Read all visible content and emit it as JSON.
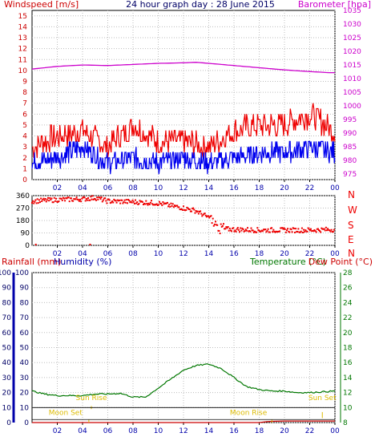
{
  "title": "24 hour graph day : 28 June 2015",
  "colors": {
    "wind_text": "#cc0000",
    "baro": "#cc00cc",
    "wind_avg": "#0000ee",
    "wind_gust": "#ee0000",
    "direction": "#ee0000",
    "temperature": "#007700",
    "humidity": "#0000aa",
    "rain": "#cc0000",
    "dewpoint": "#cc0000",
    "sun": "#ddbb00",
    "moon": "#ddbb00"
  },
  "labels": {
    "windspeed": "Windspeed [m/s]",
    "barometer": "Barometer [hpa]",
    "rainfall": "Rainfall (mm)",
    "humidity": "Humidity (%)",
    "temperature": "Temperature (°C)",
    "dewpoint": "Dew Point (°C)",
    "sun_rise": "Sun Rise",
    "sun_set": "Sun Set",
    "moon_set": "Moon Set",
    "moon_rise": "Moon Rise"
  },
  "chart_data": [
    {
      "type": "line",
      "panel": "wind-barometer",
      "x_ticks": [
        "02",
        "04",
        "06",
        "08",
        "10",
        "12",
        "14",
        "16",
        "18",
        "20",
        "22",
        "00"
      ],
      "left_axis": {
        "label": "Windspeed [m/s]",
        "ticks": [
          0,
          1,
          2,
          3,
          4,
          5,
          6,
          7,
          8,
          9,
          10,
          11,
          12,
          13,
          14,
          15
        ],
        "ylim": [
          0,
          15.5
        ]
      },
      "right_axis": {
        "label": "Barometer [hpa]",
        "ticks": [
          975,
          980,
          985,
          990,
          995,
          1000,
          1005,
          1010,
          1015,
          1020,
          1025,
          1030,
          1035
        ],
        "ylim": [
          973,
          1035
        ]
      },
      "barometer": {
        "x": [
          0,
          2,
          4,
          6,
          8,
          10,
          12,
          13,
          14,
          16,
          18,
          20,
          22,
          23.5,
          24
        ],
        "y": [
          1013.5,
          1014.5,
          1015.0,
          1014.8,
          1015.2,
          1015.6,
          1015.8,
          1016.0,
          1015.6,
          1014.8,
          1014.0,
          1013.2,
          1012.6,
          1012.2,
          1012.2
        ]
      },
      "wind_avg": {
        "x": [
          0,
          2,
          4,
          6,
          8,
          10,
          12,
          14,
          16,
          18,
          20,
          22,
          24
        ],
        "y": [
          1.5,
          2.0,
          3.0,
          1.5,
          2.0,
          1.5,
          2.0,
          1.5,
          2.0,
          2.5,
          2.5,
          3.0,
          2.5
        ]
      },
      "wind_gust": {
        "x": [
          0,
          2,
          4,
          6,
          8,
          10,
          12,
          14,
          16,
          18,
          20,
          22,
          24
        ],
        "y": [
          3.0,
          4.0,
          4.5,
          3.0,
          5.0,
          3.5,
          3.5,
          3.0,
          4.5,
          5.0,
          5.0,
          6.0,
          4.5
        ]
      }
    },
    {
      "type": "scatter",
      "panel": "wind-direction",
      "x_ticks": [
        "02",
        "04",
        "06",
        "08",
        "10",
        "12",
        "14",
        "16",
        "18",
        "20",
        "22",
        "00"
      ],
      "left_axis": {
        "ticks": [
          0,
          90,
          180,
          270,
          360
        ],
        "ylim": [
          0,
          360
        ]
      },
      "right_axis": {
        "ticks": [
          "N",
          "W",
          "S",
          "E",
          "N"
        ]
      },
      "series": {
        "x": [
          0,
          2,
          4,
          5,
          6,
          8,
          10,
          12,
          13,
          14,
          14.5,
          15,
          16,
          18,
          20,
          22,
          24
        ],
        "y": [
          320,
          330,
          335,
          345,
          320,
          315,
          305,
          270,
          250,
          200,
          150,
          120,
          115,
          110,
          110,
          110,
          115
        ]
      }
    },
    {
      "type": "line",
      "panel": "temperature-humidity",
      "x_ticks": [
        "02",
        "04",
        "06",
        "08",
        "10",
        "12",
        "14",
        "16",
        "18",
        "20",
        "22",
        "00"
      ],
      "left_axis": {
        "ticks": [
          0,
          10,
          20,
          30,
          40,
          50,
          60,
          70,
          80,
          90,
          100
        ],
        "ylim": [
          0,
          100
        ]
      },
      "right_axis": {
        "ticks": [
          8,
          10,
          12,
          14,
          16,
          18,
          20,
          22,
          24,
          26,
          28
        ],
        "ylim": [
          8,
          28
        ]
      },
      "temperature": {
        "x": [
          0,
          1,
          2,
          3,
          4,
          5,
          6,
          7,
          8,
          9,
          10,
          11,
          12,
          13,
          14,
          15,
          16,
          17,
          18,
          19,
          20,
          21,
          22,
          23,
          24
        ],
        "y": [
          12.2,
          11.8,
          11.6,
          11.6,
          11.6,
          11.8,
          11.8,
          11.9,
          11.4,
          11.4,
          12.6,
          13.8,
          15.0,
          15.6,
          15.8,
          15.2,
          14.0,
          12.8,
          12.4,
          12.2,
          12.2,
          12.0,
          12.0,
          12.1,
          12.2
        ]
      },
      "rain": {
        "x": [
          0,
          18,
          18.6,
          19,
          20,
          24
        ],
        "y": [
          0,
          0,
          0.6,
          0.8,
          1.0,
          1.0
        ]
      },
      "sun_rise_hour": 4.7,
      "sun_set_hour": 23.0,
      "moon_set_hour": 4.5,
      "moon_rise_hour": 19.0
    }
  ]
}
